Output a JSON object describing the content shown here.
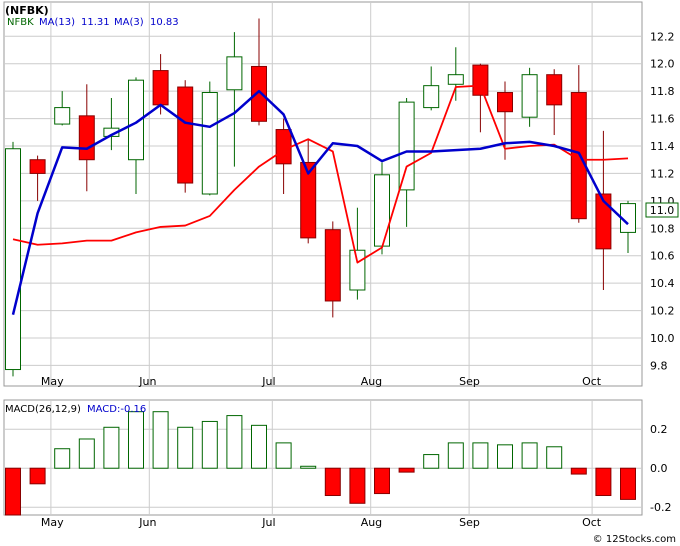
{
  "chart_data": [
    {
      "type": "candlestick",
      "ticker": "(NFBK)",
      "legend": {
        "label": "NFBK",
        "ma13_label": "MA(13)",
        "ma13_value": "11.31",
        "ma3_label": "MA(3)",
        "ma3_value": "10.83"
      },
      "last_price_label": "11.0",
      "ylim": [
        9.65,
        12.45
      ],
      "y_ticks": [
        "9.8",
        "10.0",
        "10.2",
        "10.4",
        "10.6",
        "10.8",
        "11.0",
        "11.2",
        "11.4",
        "11.6",
        "11.8",
        "12.0",
        "12.2"
      ],
      "x_ticks": [
        {
          "label": "May",
          "index": 1
        },
        {
          "label": "Jun",
          "index": 5
        },
        {
          "label": "Jul",
          "index": 10
        },
        {
          "label": "Aug",
          "index": 14
        },
        {
          "label": "Sep",
          "index": 18
        },
        {
          "label": "Oct",
          "index": 23
        }
      ],
      "candles": [
        {
          "o": 9.77,
          "h": 11.43,
          "l": 9.72,
          "c": 11.38
        },
        {
          "o": 11.3,
          "h": 11.33,
          "l": 11.0,
          "c": 11.2
        },
        {
          "o": 11.56,
          "h": 11.8,
          "l": 11.55,
          "c": 11.68
        },
        {
          "o": 11.62,
          "h": 11.85,
          "l": 11.07,
          "c": 11.3
        },
        {
          "o": 11.47,
          "h": 11.75,
          "l": 11.37,
          "c": 11.53
        },
        {
          "o": 11.3,
          "h": 11.9,
          "l": 11.05,
          "c": 11.88
        },
        {
          "o": 11.95,
          "h": 12.07,
          "l": 11.63,
          "c": 11.7
        },
        {
          "o": 11.83,
          "h": 11.88,
          "l": 11.06,
          "c": 11.13
        },
        {
          "o": 11.05,
          "h": 11.87,
          "l": 11.04,
          "c": 11.79
        },
        {
          "o": 11.81,
          "h": 12.23,
          "l": 11.25,
          "c": 12.05
        },
        {
          "o": 11.98,
          "h": 12.33,
          "l": 11.55,
          "c": 11.58
        },
        {
          "o": 11.52,
          "h": 11.6,
          "l": 11.05,
          "c": 11.27
        },
        {
          "o": 11.28,
          "h": 11.45,
          "l": 10.69,
          "c": 10.73
        },
        {
          "o": 10.79,
          "h": 10.85,
          "l": 10.15,
          "c": 10.27
        },
        {
          "o": 10.35,
          "h": 10.95,
          "l": 10.28,
          "c": 10.64
        },
        {
          "o": 10.67,
          "h": 11.28,
          "l": 10.61,
          "c": 11.19
        },
        {
          "o": 11.08,
          "h": 11.75,
          "l": 10.81,
          "c": 11.72
        },
        {
          "o": 11.68,
          "h": 11.98,
          "l": 11.66,
          "c": 11.84
        },
        {
          "o": 11.85,
          "h": 12.12,
          "l": 11.73,
          "c": 11.92
        },
        {
          "o": 11.99,
          "h": 12.0,
          "l": 11.5,
          "c": 11.77
        },
        {
          "o": 11.79,
          "h": 11.87,
          "l": 11.3,
          "c": 11.65
        },
        {
          "o": 11.61,
          "h": 11.97,
          "l": 11.54,
          "c": 11.92
        },
        {
          "o": 11.92,
          "h": 11.96,
          "l": 11.48,
          "c": 11.7
        },
        {
          "o": 11.79,
          "h": 11.99,
          "l": 10.84,
          "c": 10.87
        },
        {
          "o": 11.05,
          "h": 11.51,
          "l": 10.35,
          "c": 10.65
        },
        {
          "o": 10.77,
          "h": 11.0,
          "l": 10.62,
          "c": 10.98
        }
      ],
      "ma13": [
        {
          "i": 0,
          "v": 10.72
        },
        {
          "i": 1,
          "v": 10.68
        },
        {
          "i": 2,
          "v": 10.69
        },
        {
          "i": 3,
          "v": 10.71
        },
        {
          "i": 4,
          "v": 10.71
        },
        {
          "i": 5,
          "v": 10.77
        },
        {
          "i": 6,
          "v": 10.81
        },
        {
          "i": 7,
          "v": 10.82
        },
        {
          "i": 8,
          "v": 10.89
        },
        {
          "i": 9,
          "v": 11.08
        },
        {
          "i": 10,
          "v": 11.25
        },
        {
          "i": 11,
          "v": 11.37
        },
        {
          "i": 12,
          "v": 11.45
        },
        {
          "i": 13,
          "v": 11.36
        },
        {
          "i": 14,
          "v": 10.55
        },
        {
          "i": 15,
          "v": 10.66
        },
        {
          "i": 16,
          "v": 11.25
        },
        {
          "i": 17,
          "v": 11.35
        },
        {
          "i": 18,
          "v": 11.83
        },
        {
          "i": 19,
          "v": 11.84
        },
        {
          "i": 20,
          "v": 11.38
        },
        {
          "i": 21,
          "v": 11.4
        },
        {
          "i": 22,
          "v": 11.41
        },
        {
          "i": 23,
          "v": 11.3
        },
        {
          "i": 24,
          "v": 11.3
        },
        {
          "i": 25,
          "v": 11.31
        }
      ],
      "ma3": [
        {
          "i": 0,
          "v": 10.17
        },
        {
          "i": 1,
          "v": 10.91
        },
        {
          "i": 2,
          "v": 11.39
        },
        {
          "i": 3,
          "v": 11.38
        },
        {
          "i": 4,
          "v": 11.48
        },
        {
          "i": 5,
          "v": 11.57
        },
        {
          "i": 6,
          "v": 11.7
        },
        {
          "i": 7,
          "v": 11.57
        },
        {
          "i": 8,
          "v": 11.54
        },
        {
          "i": 9,
          "v": 11.64
        },
        {
          "i": 10,
          "v": 11.8
        },
        {
          "i": 11,
          "v": 11.63
        },
        {
          "i": 12,
          "v": 11.2
        },
        {
          "i": 13,
          "v": 11.42
        },
        {
          "i": 14,
          "v": 11.4
        },
        {
          "i": 15,
          "v": 11.29
        },
        {
          "i": 16,
          "v": 11.36
        },
        {
          "i": 17,
          "v": 11.36
        },
        {
          "i": 18,
          "v": 11.37
        },
        {
          "i": 19,
          "v": 11.38
        },
        {
          "i": 20,
          "v": 11.42
        },
        {
          "i": 21,
          "v": 11.43
        },
        {
          "i": 22,
          "v": 11.4
        },
        {
          "i": 23,
          "v": 11.35
        },
        {
          "i": 24,
          "v": 11.0
        },
        {
          "i": 25,
          "v": 10.83
        }
      ]
    },
    {
      "type": "bar",
      "legend": {
        "label": "MACD(26,12,9)",
        "value_label": "MACD:-0.16"
      },
      "ylim": [
        -0.24,
        0.35
      ],
      "y_ticks": [
        "0.2",
        "0.0",
        "-0.2"
      ],
      "x_ticks": [
        {
          "label": "May",
          "index": 1
        },
        {
          "label": "Jun",
          "index": 5
        },
        {
          "label": "Jul",
          "index": 10
        },
        {
          "label": "Aug",
          "index": 14
        },
        {
          "label": "Sep",
          "index": 18
        },
        {
          "label": "Oct",
          "index": 23
        }
      ],
      "values": [
        -0.24,
        -0.08,
        0.1,
        0.15,
        0.21,
        0.29,
        0.29,
        0.21,
        0.24,
        0.27,
        0.22,
        0.13,
        0.01,
        -0.14,
        -0.18,
        -0.13,
        -0.02,
        0.07,
        0.13,
        0.13,
        0.12,
        0.13,
        0.11,
        -0.03,
        -0.14,
        -0.16
      ]
    }
  ],
  "colors": {
    "up_candle": "#ffffff",
    "up_border": "#006600",
    "down_candle": "#ff0000",
    "down_border": "#880000",
    "ma13": "#ff0000",
    "ma3": "#0000cc",
    "grid": "#cccccc",
    "frame": "#999999"
  },
  "watermark": "© 12Stocks.com"
}
